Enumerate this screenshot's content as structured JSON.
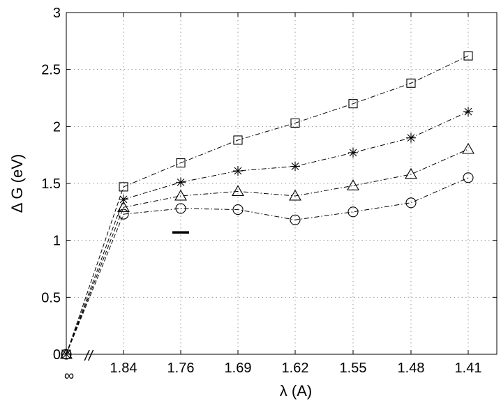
{
  "chart_data": {
    "type": "line",
    "title": "",
    "xlabel": "λ  (A)",
    "ylabel": "Δ G  (eV)",
    "ylim": [
      0,
      3
    ],
    "y_ticks": [
      "0",
      "0.5",
      "1",
      "1.5",
      "2",
      "2.5",
      "3"
    ],
    "x_tick_labels": [
      "∞",
      "1.84",
      "1.76",
      "1.69",
      "1.62",
      "1.55",
      "1.48",
      "1.41"
    ],
    "x_break_label": "//",
    "grid": true,
    "legend": "none",
    "series": [
      {
        "marker": "square",
        "x": [
          "∞",
          "1.84",
          "1.76",
          "1.69",
          "1.62",
          "1.55",
          "1.48",
          "1.41"
        ],
        "values": [
          0,
          1.47,
          1.68,
          1.88,
          2.03,
          2.2,
          2.38,
          2.62
        ]
      },
      {
        "marker": "star",
        "x": [
          "∞",
          "1.84",
          "1.76",
          "1.69",
          "1.62",
          "1.55",
          "1.48",
          "1.41"
        ],
        "values": [
          0,
          1.36,
          1.51,
          1.61,
          1.65,
          1.77,
          1.9,
          2.13
        ]
      },
      {
        "marker": "triangle",
        "x": [
          "∞",
          "1.84",
          "1.76",
          "1.69",
          "1.62",
          "1.55",
          "1.48",
          "1.41"
        ],
        "values": [
          0,
          1.29,
          1.39,
          1.43,
          1.39,
          1.48,
          1.58,
          1.8
        ]
      },
      {
        "marker": "circle",
        "x": [
          "∞",
          "1.84",
          "1.76",
          "1.69",
          "1.62",
          "1.55",
          "1.48",
          "1.41"
        ],
        "values": [
          0,
          1.23,
          1.28,
          1.27,
          1.18,
          1.25,
          1.33,
          1.55
        ]
      }
    ],
    "annotations": [
      {
        "type": "bar-mark",
        "x": "1.76",
        "y": 1.07
      }
    ]
  }
}
